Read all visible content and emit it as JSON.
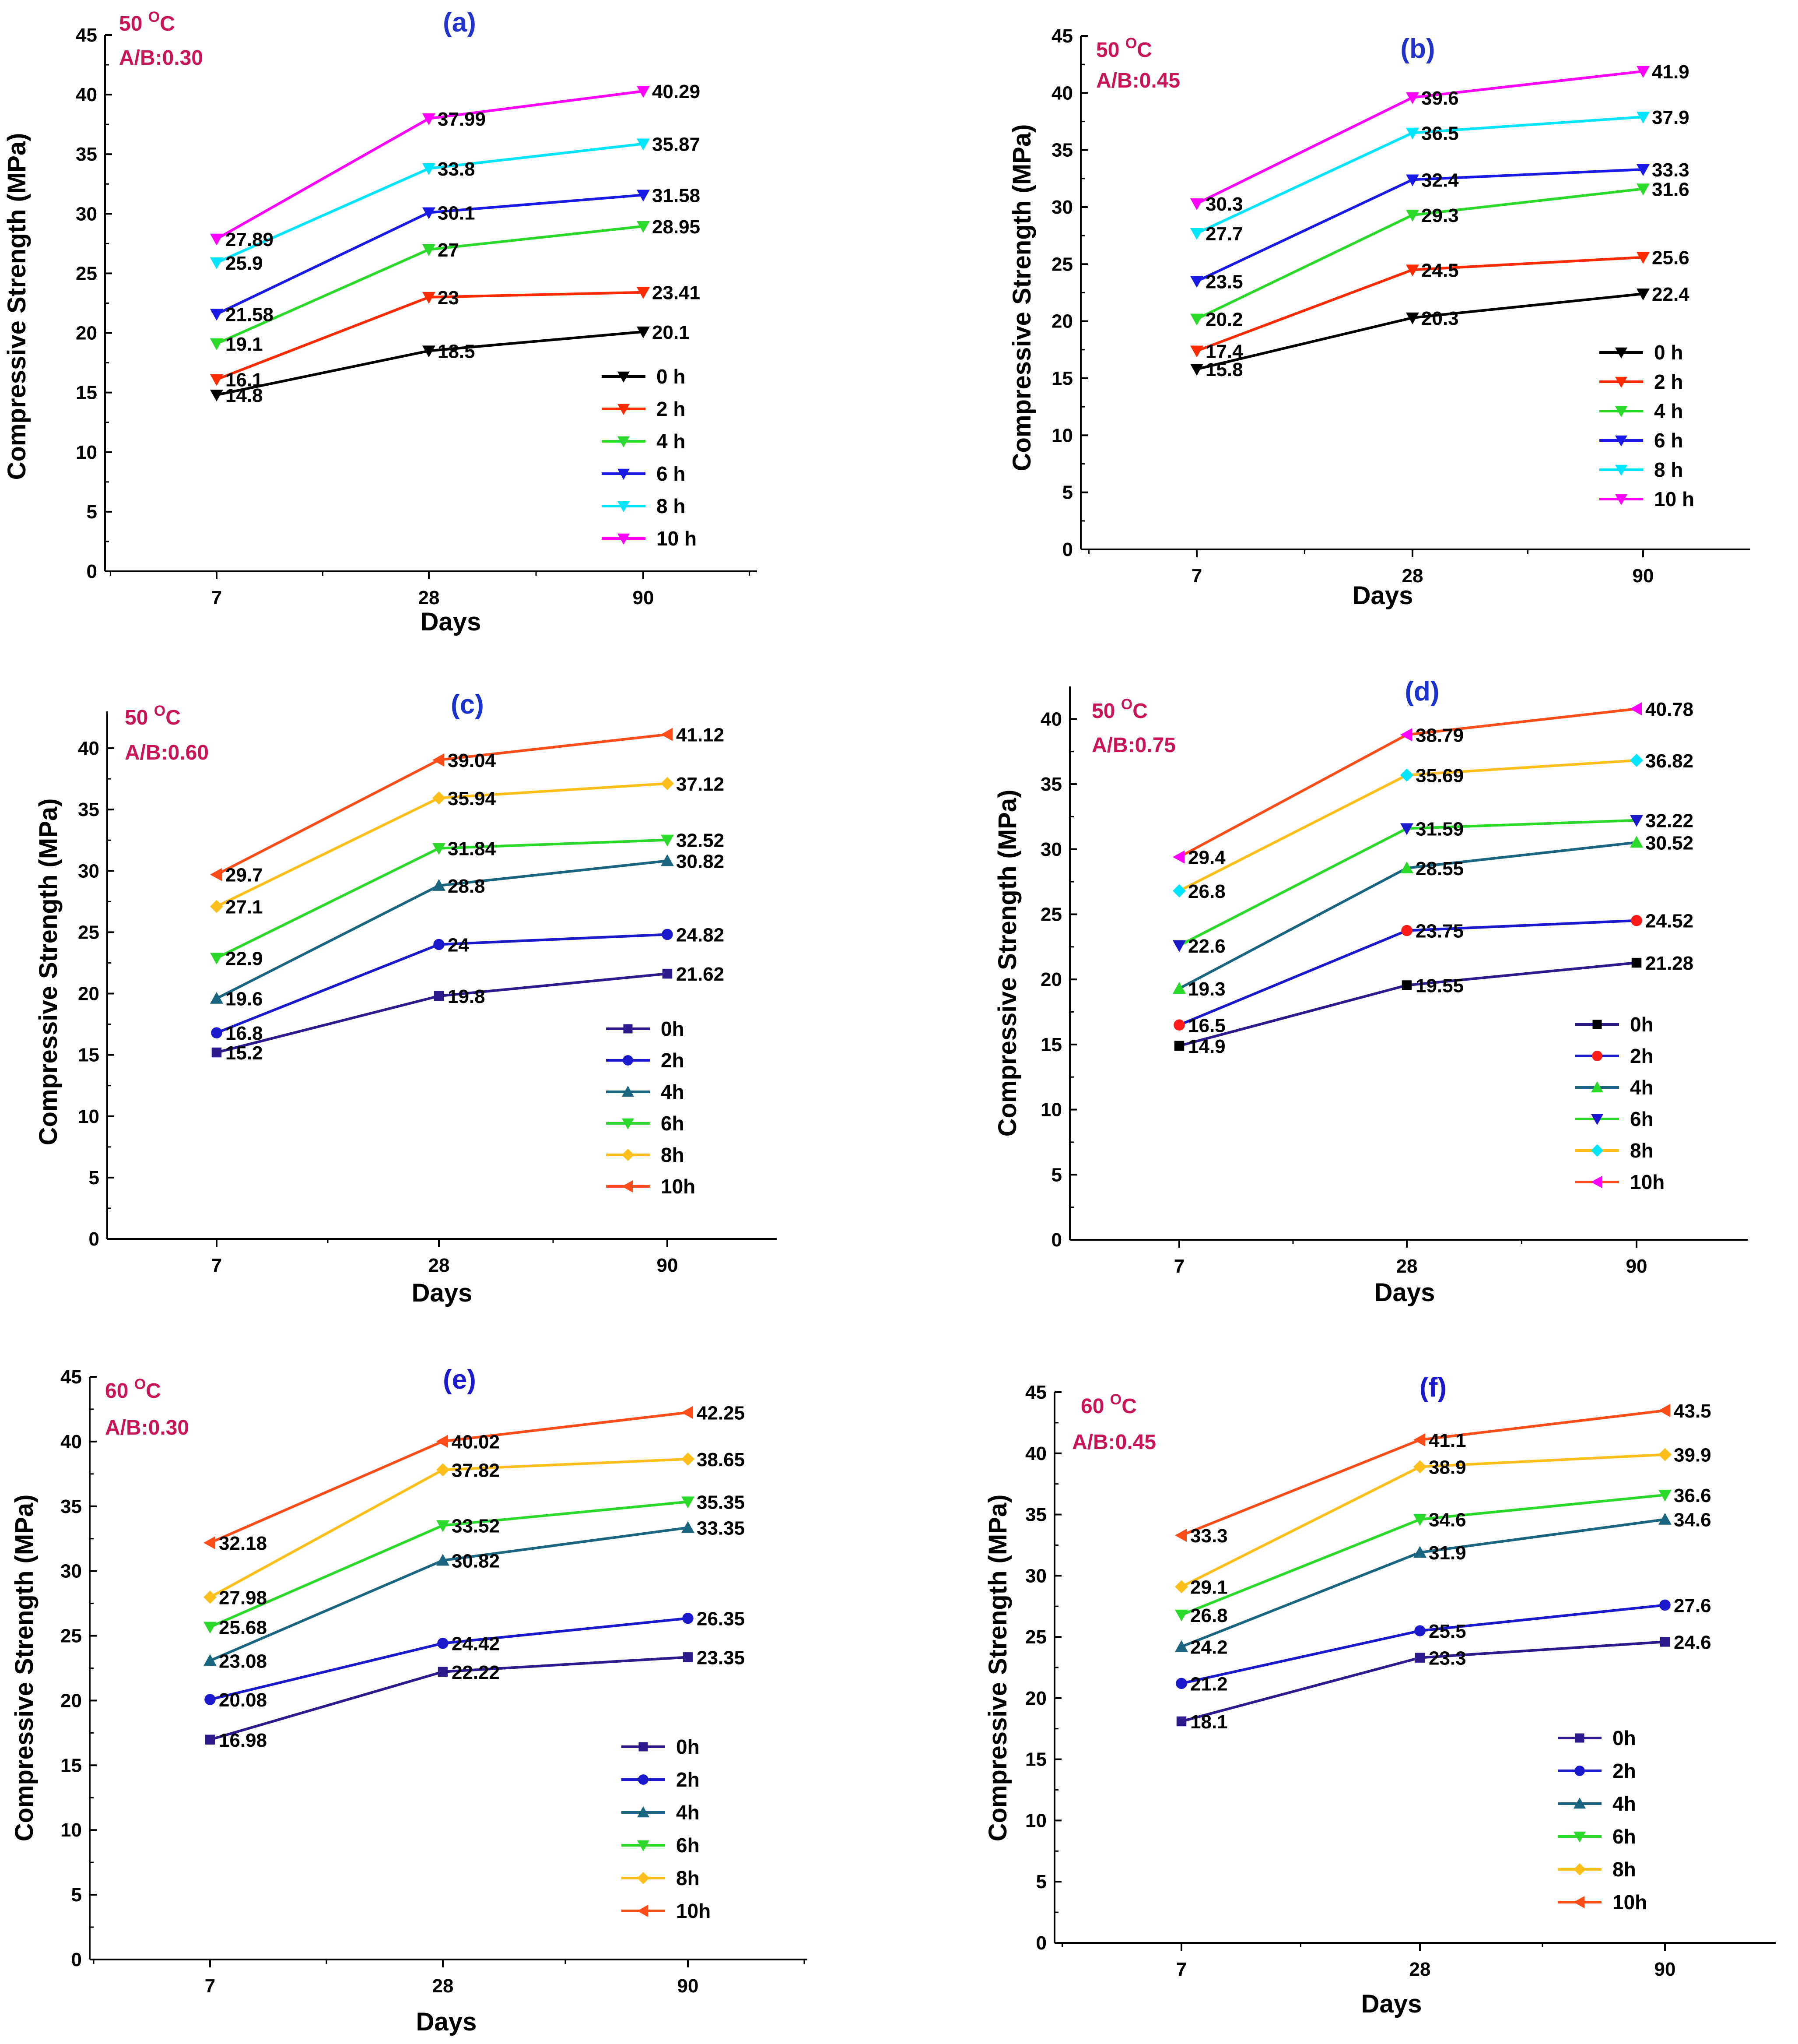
{
  "figure": {
    "y_axis_title": "Compressive Strength (MPa)",
    "x_axis_title": "Days"
  },
  "chart_data": [
    {
      "panel": "(a)",
      "temperature": "50",
      "temp_unit": "O",
      "temp_suffix": "C",
      "ratio": "A/B:0.30",
      "type": "line",
      "x": [
        7,
        28,
        90
      ],
      "categories": [
        "7",
        "28",
        "90"
      ],
      "ylim": [
        0,
        45
      ],
      "yticks": [
        0,
        5,
        10,
        15,
        20,
        25,
        30,
        35,
        40,
        45
      ],
      "xlabel": "Days",
      "ylabel": "Compressive Strength (MPa)",
      "legend_position": "bottom-right",
      "series": [
        {
          "name": "0 h",
          "color": "#000000",
          "marker": "tri-down",
          "values": [
            14.8,
            18.5,
            20.1
          ],
          "labels": [
            "14.8",
            "18.5",
            "20.1"
          ]
        },
        {
          "name": "2 h",
          "color": "#ff2b00",
          "marker": "tri-down",
          "values": [
            16.1,
            23,
            23.41
          ],
          "labels": [
            "16.1",
            "23",
            "23.41"
          ]
        },
        {
          "name": "4 h",
          "color": "#2bd92b",
          "marker": "tri-down",
          "values": [
            19.1,
            27,
            28.95
          ],
          "labels": [
            "19.1",
            "27",
            "28.95"
          ]
        },
        {
          "name": "6 h",
          "color": "#1a1ae6",
          "marker": "tri-down",
          "values": [
            21.58,
            30.1,
            31.58
          ],
          "labels": [
            "21.58",
            "30.1",
            "31.58"
          ]
        },
        {
          "name": "8 h",
          "color": "#00e5ff",
          "marker": "tri-down",
          "values": [
            25.9,
            33.8,
            35.87
          ],
          "labels": [
            "25.9",
            "33.8",
            "35.87"
          ]
        },
        {
          "name": "10 h",
          "color": "#ff00ff",
          "marker": "tri-down",
          "values": [
            27.89,
            37.99,
            40.29
          ],
          "labels": [
            "27.89",
            "37.99",
            "40.29"
          ]
        }
      ]
    },
    {
      "panel": "(b)",
      "temperature": "50",
      "temp_unit": "O",
      "temp_suffix": "C",
      "ratio": "A/B:0.45",
      "type": "line",
      "x": [
        7,
        28,
        90
      ],
      "categories": [
        "7",
        "28",
        "90"
      ],
      "ylim": [
        0,
        45
      ],
      "yticks": [
        0,
        5,
        10,
        15,
        20,
        25,
        30,
        35,
        40,
        45
      ],
      "xlabel": "Days",
      "ylabel": "Compressive Strength (MPa)",
      "legend_position": "bottom-right",
      "series": [
        {
          "name": "0 h",
          "color": "#000000",
          "marker": "tri-down",
          "values": [
            15.8,
            20.3,
            22.4
          ],
          "labels": [
            "15.8",
            "20.3",
            "22.4"
          ]
        },
        {
          "name": "2 h",
          "color": "#ff2b00",
          "marker": "tri-down",
          "values": [
            17.4,
            24.5,
            25.6
          ],
          "labels": [
            "17.4",
            "24.5",
            "25.6"
          ]
        },
        {
          "name": "4 h",
          "color": "#2bd92b",
          "marker": "tri-down",
          "values": [
            20.2,
            29.3,
            31.6
          ],
          "labels": [
            "20.2",
            "29.3",
            "31.6"
          ]
        },
        {
          "name": "6 h",
          "color": "#1a1ae6",
          "marker": "tri-down",
          "values": [
            23.5,
            32.4,
            33.3
          ],
          "labels": [
            "23.5",
            "32.4",
            "33.3"
          ]
        },
        {
          "name": "8 h",
          "color": "#00e5ff",
          "marker": "tri-down",
          "values": [
            27.7,
            36.5,
            37.9
          ],
          "labels": [
            "27.7",
            "36.5",
            "37.9"
          ]
        },
        {
          "name": "10 h",
          "color": "#ff00ff",
          "marker": "tri-down",
          "values": [
            30.3,
            39.6,
            41.9
          ],
          "labels": [
            "30.3",
            "39.6",
            "41.9"
          ]
        }
      ]
    },
    {
      "panel": "(c)",
      "temperature": "50",
      "temp_unit": "O",
      "temp_suffix": "C",
      "ratio": "A/B:0.60",
      "type": "line",
      "x": [
        7,
        28,
        90
      ],
      "categories": [
        "7",
        "28",
        "90"
      ],
      "ylim": [
        0,
        43
      ],
      "yticks": [
        0,
        5,
        10,
        15,
        20,
        25,
        30,
        35,
        40
      ],
      "xlabel": "Days",
      "ylabel": "Compressive Strength (MPa)",
      "legend_position": "bottom-right",
      "series": [
        {
          "name": "0h",
          "color": "#2e1a8c",
          "marker": "square",
          "values": [
            15.2,
            19.8,
            21.62
          ],
          "labels": [
            "15.2",
            "19.8",
            "21.62"
          ]
        },
        {
          "name": "2h",
          "color": "#1a1acc",
          "marker": "circle",
          "values": [
            16.8,
            24,
            24.82
          ],
          "labels": [
            "16.8",
            "24",
            "24.82"
          ]
        },
        {
          "name": "4h",
          "color": "#1a6680",
          "marker": "tri-up",
          "values": [
            19.6,
            28.8,
            30.82
          ],
          "labels": [
            "19.6",
            "28.8",
            "30.82"
          ]
        },
        {
          "name": "6h",
          "color": "#2bd92b",
          "marker": "tri-down",
          "values": [
            22.9,
            31.84,
            32.52
          ],
          "labels": [
            "22.9",
            "31.84",
            "32.52"
          ]
        },
        {
          "name": "8h",
          "color": "#ffbf1a",
          "marker": "diamond",
          "values": [
            27.1,
            35.94,
            37.12
          ],
          "labels": [
            "27.1",
            "35.94",
            "37.12"
          ]
        },
        {
          "name": "10h",
          "color": "#ff4d1a",
          "marker": "tri-left",
          "values": [
            29.7,
            39.04,
            41.12
          ],
          "labels": [
            "29.7",
            "39.04",
            "41.12"
          ]
        }
      ]
    },
    {
      "panel": "(d)",
      "temperature": "50",
      "temp_unit": "O",
      "temp_suffix": "C",
      "ratio": "A/B:0.75",
      "type": "line",
      "x": [
        7,
        28,
        90
      ],
      "categories": [
        "7",
        "28",
        "90"
      ],
      "ylim": [
        0,
        42.5
      ],
      "yticks": [
        0,
        5,
        10,
        15,
        20,
        25,
        30,
        35,
        40
      ],
      "xlabel": "Days",
      "ylabel": "Compressive Strength (MPa)",
      "legend_position": "bottom-right",
      "series": [
        {
          "name": "0h",
          "color": "#2e1a8c",
          "marker": "square",
          "marker_color": "#000000",
          "values": [
            14.9,
            19.55,
            21.28
          ],
          "labels": [
            "14.9",
            "19.55",
            "21.28"
          ]
        },
        {
          "name": "2h",
          "color": "#1a1acc",
          "marker": "circle",
          "marker_color": "#ff1a1a",
          "values": [
            16.5,
            23.75,
            24.52
          ],
          "labels": [
            "16.5",
            "23.75",
            "24.52"
          ]
        },
        {
          "name": "4h",
          "color": "#1a6680",
          "marker": "tri-up",
          "marker_color": "#2bd92b",
          "values": [
            19.3,
            28.55,
            30.52
          ],
          "labels": [
            "19.3",
            "28.55",
            "30.52"
          ]
        },
        {
          "name": "6h",
          "color": "#2bd92b",
          "marker": "tri-down",
          "marker_color": "#1a1acc",
          "values": [
            22.6,
            31.59,
            32.22
          ],
          "labels": [
            "22.6",
            "31.59",
            "32.22"
          ]
        },
        {
          "name": "8h",
          "color": "#ffbf1a",
          "marker": "diamond",
          "marker_color": "#00e5ff",
          "values": [
            26.8,
            35.69,
            36.82
          ],
          "labels": [
            "26.8",
            "35.69",
            "36.82"
          ]
        },
        {
          "name": "10h",
          "color": "#ff4d1a",
          "marker": "tri-left",
          "marker_color": "#ff00ff",
          "values": [
            29.4,
            38.79,
            40.78
          ],
          "labels": [
            "29.4",
            "38.79",
            "40.78"
          ]
        }
      ]
    },
    {
      "panel": "(e)",
      "temperature": "60",
      "temp_unit": "O",
      "temp_suffix": "C",
      "ratio": "A/B:0.30",
      "type": "line",
      "x": [
        7,
        28,
        90
      ],
      "categories": [
        "7",
        "28",
        "90"
      ],
      "ylim": [
        0,
        45
      ],
      "yticks": [
        0,
        5,
        10,
        15,
        20,
        25,
        30,
        35,
        40,
        45
      ],
      "xlabel": "Days",
      "ylabel": "Compressive Strength (MPa)",
      "legend_position": "bottom-right",
      "series": [
        {
          "name": "0h",
          "color": "#2e1a8c",
          "marker": "square",
          "values": [
            16.98,
            22.22,
            23.35
          ],
          "labels": [
            "16.98",
            "22.22",
            "23.35"
          ]
        },
        {
          "name": "2h",
          "color": "#1a1acc",
          "marker": "circle",
          "values": [
            20.08,
            24.42,
            26.35
          ],
          "labels": [
            "20.08",
            "24.42",
            "26.35"
          ]
        },
        {
          "name": "4h",
          "color": "#1a6680",
          "marker": "tri-up",
          "values": [
            23.08,
            30.82,
            33.35
          ],
          "labels": [
            "23.08",
            "30.82",
            "33.35"
          ]
        },
        {
          "name": "6h",
          "color": "#2bd92b",
          "marker": "tri-down",
          "values": [
            25.68,
            33.52,
            35.35
          ],
          "labels": [
            "25.68",
            "33.52",
            "35.35"
          ]
        },
        {
          "name": "8h",
          "color": "#ffbf1a",
          "marker": "diamond",
          "values": [
            27.98,
            37.82,
            38.65
          ],
          "labels": [
            "27.98",
            "37.82",
            "38.65"
          ]
        },
        {
          "name": "10h",
          "color": "#ff4d1a",
          "marker": "tri-left",
          "values": [
            32.18,
            40.02,
            42.25
          ],
          "labels": [
            "32.18",
            "40.02",
            "42.25"
          ]
        }
      ]
    },
    {
      "panel": "(f)",
      "temperature": "60",
      "temp_unit": "O",
      "temp_suffix": "C",
      "ratio": "A/B:0.45",
      "type": "line",
      "x": [
        7,
        28,
        90
      ],
      "categories": [
        "7",
        "28",
        "90"
      ],
      "ylim": [
        0,
        45
      ],
      "yticks": [
        0,
        5,
        10,
        15,
        20,
        25,
        30,
        35,
        40,
        45
      ],
      "xlabel": "Days",
      "ylabel": "Compressive Strength (MPa)",
      "legend_position": "bottom-right",
      "series": [
        {
          "name": "0h",
          "color": "#2e1a8c",
          "marker": "square",
          "values": [
            18.1,
            23.3,
            24.6
          ],
          "labels": [
            "18.1",
            "23.3",
            "24.6"
          ]
        },
        {
          "name": "2h",
          "color": "#1a1acc",
          "marker": "circle",
          "values": [
            21.2,
            25.5,
            27.6
          ],
          "labels": [
            "21.2",
            "25.5",
            "27.6"
          ]
        },
        {
          "name": "4h",
          "color": "#1a6680",
          "marker": "tri-up",
          "values": [
            24.2,
            31.9,
            34.6
          ],
          "labels": [
            "24.2",
            "31.9",
            "34.6"
          ]
        },
        {
          "name": "6h",
          "color": "#2bd92b",
          "marker": "tri-down",
          "values": [
            26.8,
            34.6,
            36.6
          ],
          "labels": [
            "26.8",
            "34.6",
            "36.6"
          ]
        },
        {
          "name": "8h",
          "color": "#ffbf1a",
          "marker": "diamond",
          "values": [
            29.1,
            38.9,
            39.9
          ],
          "labels": [
            "29.1",
            "38.9",
            "39.9"
          ]
        },
        {
          "name": "10h",
          "color": "#ff4d1a",
          "marker": "tri-left",
          "values": [
            33.3,
            41.1,
            43.5
          ],
          "labels": [
            "33.3",
            "41.1",
            "43.5"
          ]
        }
      ]
    }
  ]
}
